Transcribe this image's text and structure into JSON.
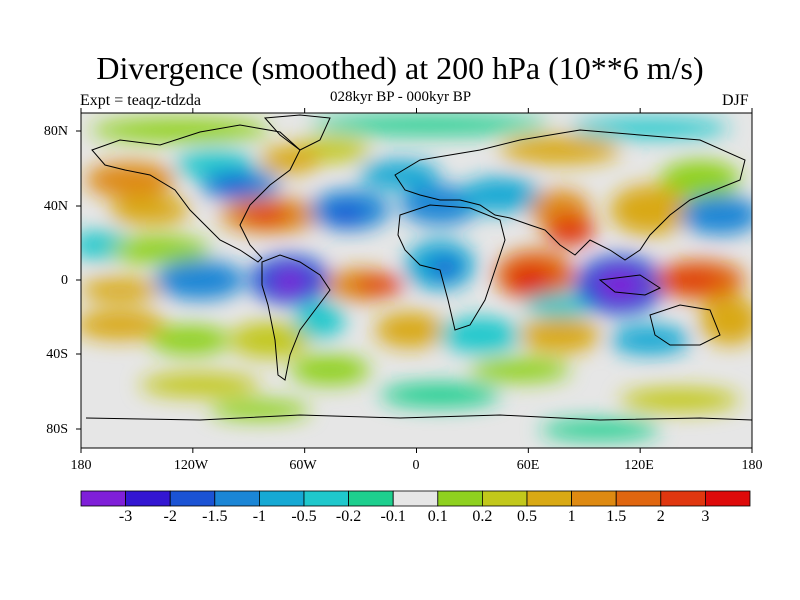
{
  "title": "Divergence (smoothed) at 200 hPa (10**6 m/s)",
  "subtitle": "028kyr BP - 000kyr BP",
  "experiment": "Expt = teaqz-tdzda",
  "season": "DJF",
  "lat_labels": [
    "80N",
    "40N",
    "0",
    "40S",
    "80S"
  ],
  "lon_labels": [
    "180",
    "120W",
    "60W",
    "0",
    "60E",
    "120E",
    "180"
  ],
  "colorbar": {
    "labels": [
      "-3",
      "-2",
      "-1.5",
      "-1",
      "-0.5",
      "-0.2",
      "-0.1",
      "0.1",
      "0.2",
      "0.5",
      "1",
      "1.5",
      "2",
      "3"
    ],
    "colors": [
      "#7f1fd8",
      "#3316d2",
      "#1b53d4",
      "#1b86d6",
      "#16a9d4",
      "#1fc8cc",
      "#1ecf8e",
      "#e6e6e6",
      "#8fd11f",
      "#c2c81b",
      "#d9a914",
      "#de8a12",
      "#e0660f",
      "#e0370f",
      "#de0a0a"
    ]
  }
}
